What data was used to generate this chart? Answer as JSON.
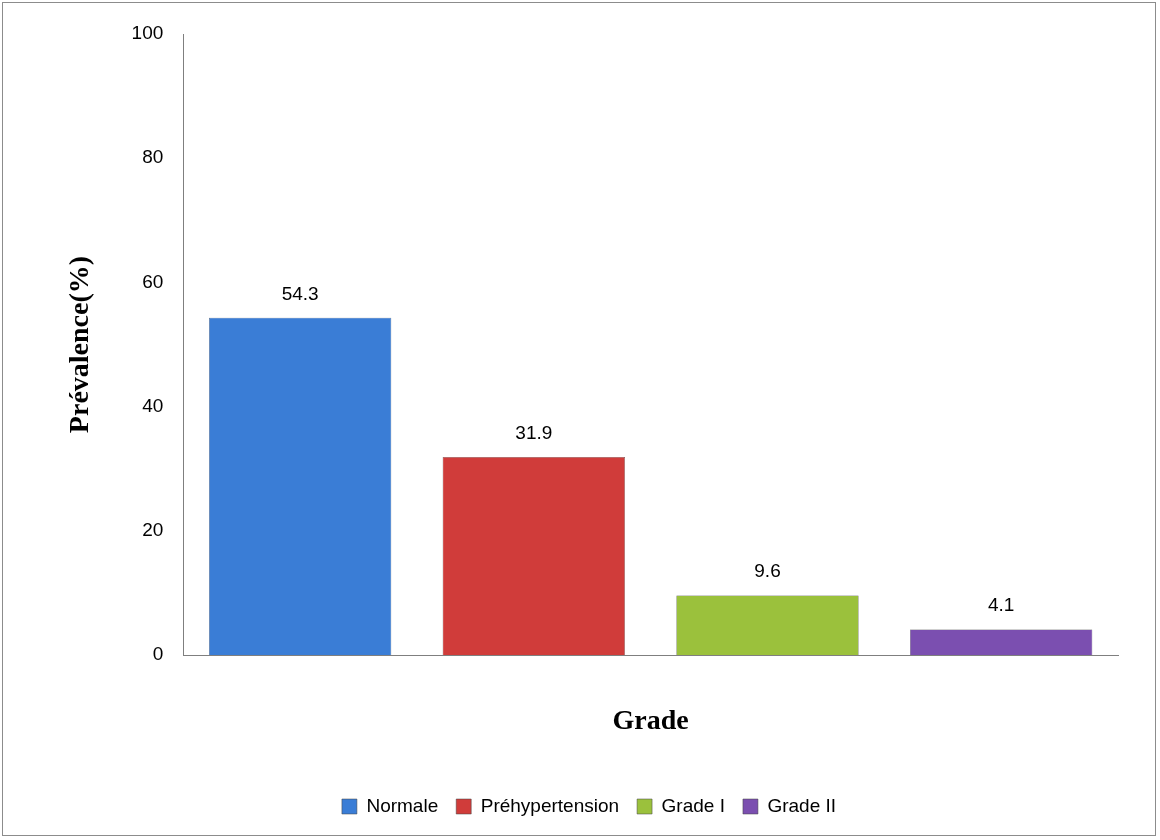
{
  "chart_data": {
    "type": "bar",
    "xlabel": "Grade",
    "ylabel": "Prévalence(%)",
    "categories": [
      null,
      null,
      null,
      null
    ],
    "series": [
      {
        "name": "Normale",
        "color": "#3a7dd6",
        "values": [
          54.3,
          null,
          null,
          null
        ]
      },
      {
        "name": "Préhypertension",
        "color": "#d03c3a",
        "values": [
          null,
          31.9,
          null,
          null
        ]
      },
      {
        "name": "Grade I",
        "color": "#9bc13c",
        "values": [
          null,
          null,
          9.6,
          null
        ]
      },
      {
        "name": "Grade II",
        "color": "#7b4fb0",
        "values": [
          null,
          null,
          null,
          4.1
        ]
      }
    ],
    "ylim": [
      0,
      100
    ],
    "yticks": [
      0,
      20,
      40,
      60,
      80,
      100
    ],
    "grid": false,
    "legend": "bottom",
    "data_labels": true
  }
}
